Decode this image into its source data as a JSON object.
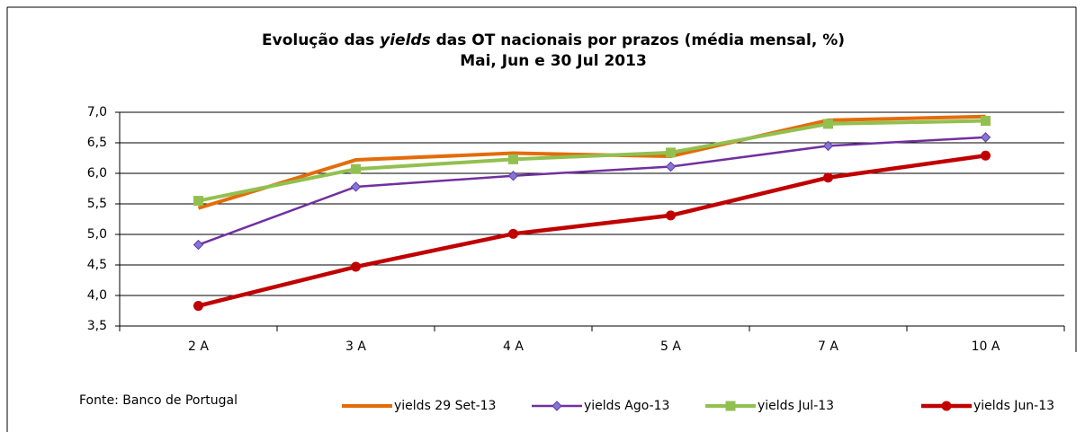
{
  "chart_data": {
    "type": "line",
    "title": {
      "before": "Evolução das",
      "italic": "yields",
      "after": "das OT nacionais por prazos (média mensal, %)"
    },
    "subtitle": "Mai, Jun e 30 Jul 2013",
    "source": "Fonte: Banco de Portugal",
    "categories": [
      "2 A",
      "3 A",
      "4 A",
      "5 A",
      "7 A",
      "10 A"
    ],
    "series": [
      {
        "name": "yields 29 Set-13",
        "color": "#e36c0a",
        "marker": "none",
        "values": [
          5.43,
          6.22,
          6.33,
          6.28,
          6.87,
          6.93
        ]
      },
      {
        "name": "yields Ago-13",
        "color": "#7030a0",
        "marker": "diamond",
        "values": [
          4.83,
          5.78,
          5.96,
          6.11,
          6.45,
          6.59
        ]
      },
      {
        "name": "yields Jul-13",
        "color": "#92c050",
        "marker": "square",
        "values": [
          5.55,
          6.07,
          6.23,
          6.34,
          6.81,
          6.86
        ]
      },
      {
        "name": "yields Jun-13",
        "color": "#c00000",
        "marker": "circle",
        "values": [
          3.83,
          4.47,
          5.01,
          5.31,
          5.93,
          6.29
        ]
      }
    ],
    "ylim": [
      3.5,
      7.0
    ],
    "yticks": [
      {
        "value": 3.5,
        "label": "3,5"
      },
      {
        "value": 4,
        "label": "4,0"
      },
      {
        "value": 4.5,
        "label": "4,5"
      },
      {
        "value": 5,
        "label": "5,0"
      },
      {
        "value": 5.5,
        "label": "5,5"
      },
      {
        "value": 6,
        "label": "6,0"
      },
      {
        "value": 6.5,
        "label": "6,5"
      },
      {
        "value": 7,
        "label": "7,0"
      }
    ],
    "grid": true,
    "legend": "bottom"
  }
}
